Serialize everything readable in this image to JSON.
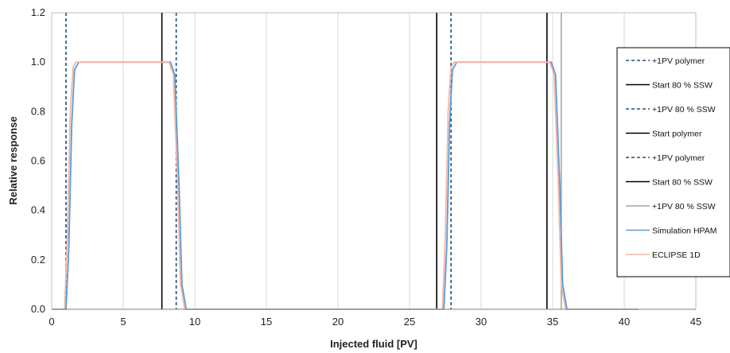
{
  "chart_data": {
    "type": "line",
    "title": "",
    "xlabel": "Injected fluid [PV]",
    "ylabel": "Relative response",
    "xlim": [
      0,
      45
    ],
    "ylim": [
      0,
      1.2
    ],
    "xticks": [
      0,
      5,
      10,
      15,
      20,
      25,
      30,
      35,
      40,
      45
    ],
    "yticks": [
      0.0,
      0.2,
      0.4,
      0.6,
      0.8,
      1.0,
      1.2
    ],
    "ytick_labels": [
      "0.0",
      "0.2",
      "0.4",
      "0.6",
      "0.8",
      "1.0",
      "1.2"
    ],
    "grid": "vertical",
    "legend_position": "right",
    "markers": [
      {
        "name": "+1PV polymer",
        "x": 1.0,
        "color": "#1f4e79",
        "dash": true
      },
      {
        "name": "Start 80 % SSW",
        "x": 7.7,
        "color": "#000000",
        "dash": false
      },
      {
        "name": "+1PV 80 % SSW",
        "x": 8.7,
        "color": "#1f4e79",
        "dash": true
      },
      {
        "name": "Start polymer",
        "x": 26.9,
        "color": "#000000",
        "dash": false
      },
      {
        "name": "+1PV polymer",
        "x": 27.9,
        "color": "#1f4e79",
        "dash": true
      },
      {
        "name": "Start 80 % SSW",
        "x": 34.6,
        "color": "#000000",
        "dash": false
      },
      {
        "name": "+1PV 80 % SSW",
        "x": 35.6,
        "color": "#a6a6a6",
        "dash": false
      }
    ],
    "series": [
      {
        "name": "Simulation HPAM",
        "color": "#5b9bd5",
        "x": [
          0,
          1.0,
          1.2,
          1.4,
          1.6,
          1.9,
          8.3,
          8.6,
          8.9,
          9.1,
          9.4,
          27.4,
          27.6,
          27.8,
          28.0,
          28.3,
          34.9,
          35.2,
          35.5,
          35.7,
          36.0,
          41.0
        ],
        "y": [
          0,
          0,
          0.25,
          0.75,
          0.97,
          1.0,
          1.0,
          0.95,
          0.5,
          0.1,
          0,
          0,
          0.25,
          0.75,
          0.97,
          1.0,
          1.0,
          0.95,
          0.5,
          0.1,
          0,
          0
        ]
      },
      {
        "name": "ECLIPSE 1D",
        "color": "#f4b6a6",
        "x": [
          0,
          0.9,
          1.1,
          1.3,
          1.5,
          1.7,
          8.2,
          8.5,
          8.8,
          9.0,
          9.3,
          27.3,
          27.5,
          27.7,
          27.9,
          28.1,
          34.8,
          35.1,
          35.4,
          35.6,
          35.9,
          41.0
        ],
        "y": [
          0,
          0,
          0.3,
          0.8,
          0.98,
          1.0,
          1.0,
          0.95,
          0.5,
          0.1,
          0,
          0,
          0.3,
          0.8,
          0.98,
          1.0,
          1.0,
          0.95,
          0.5,
          0.1,
          0,
          0
        ]
      }
    ]
  }
}
